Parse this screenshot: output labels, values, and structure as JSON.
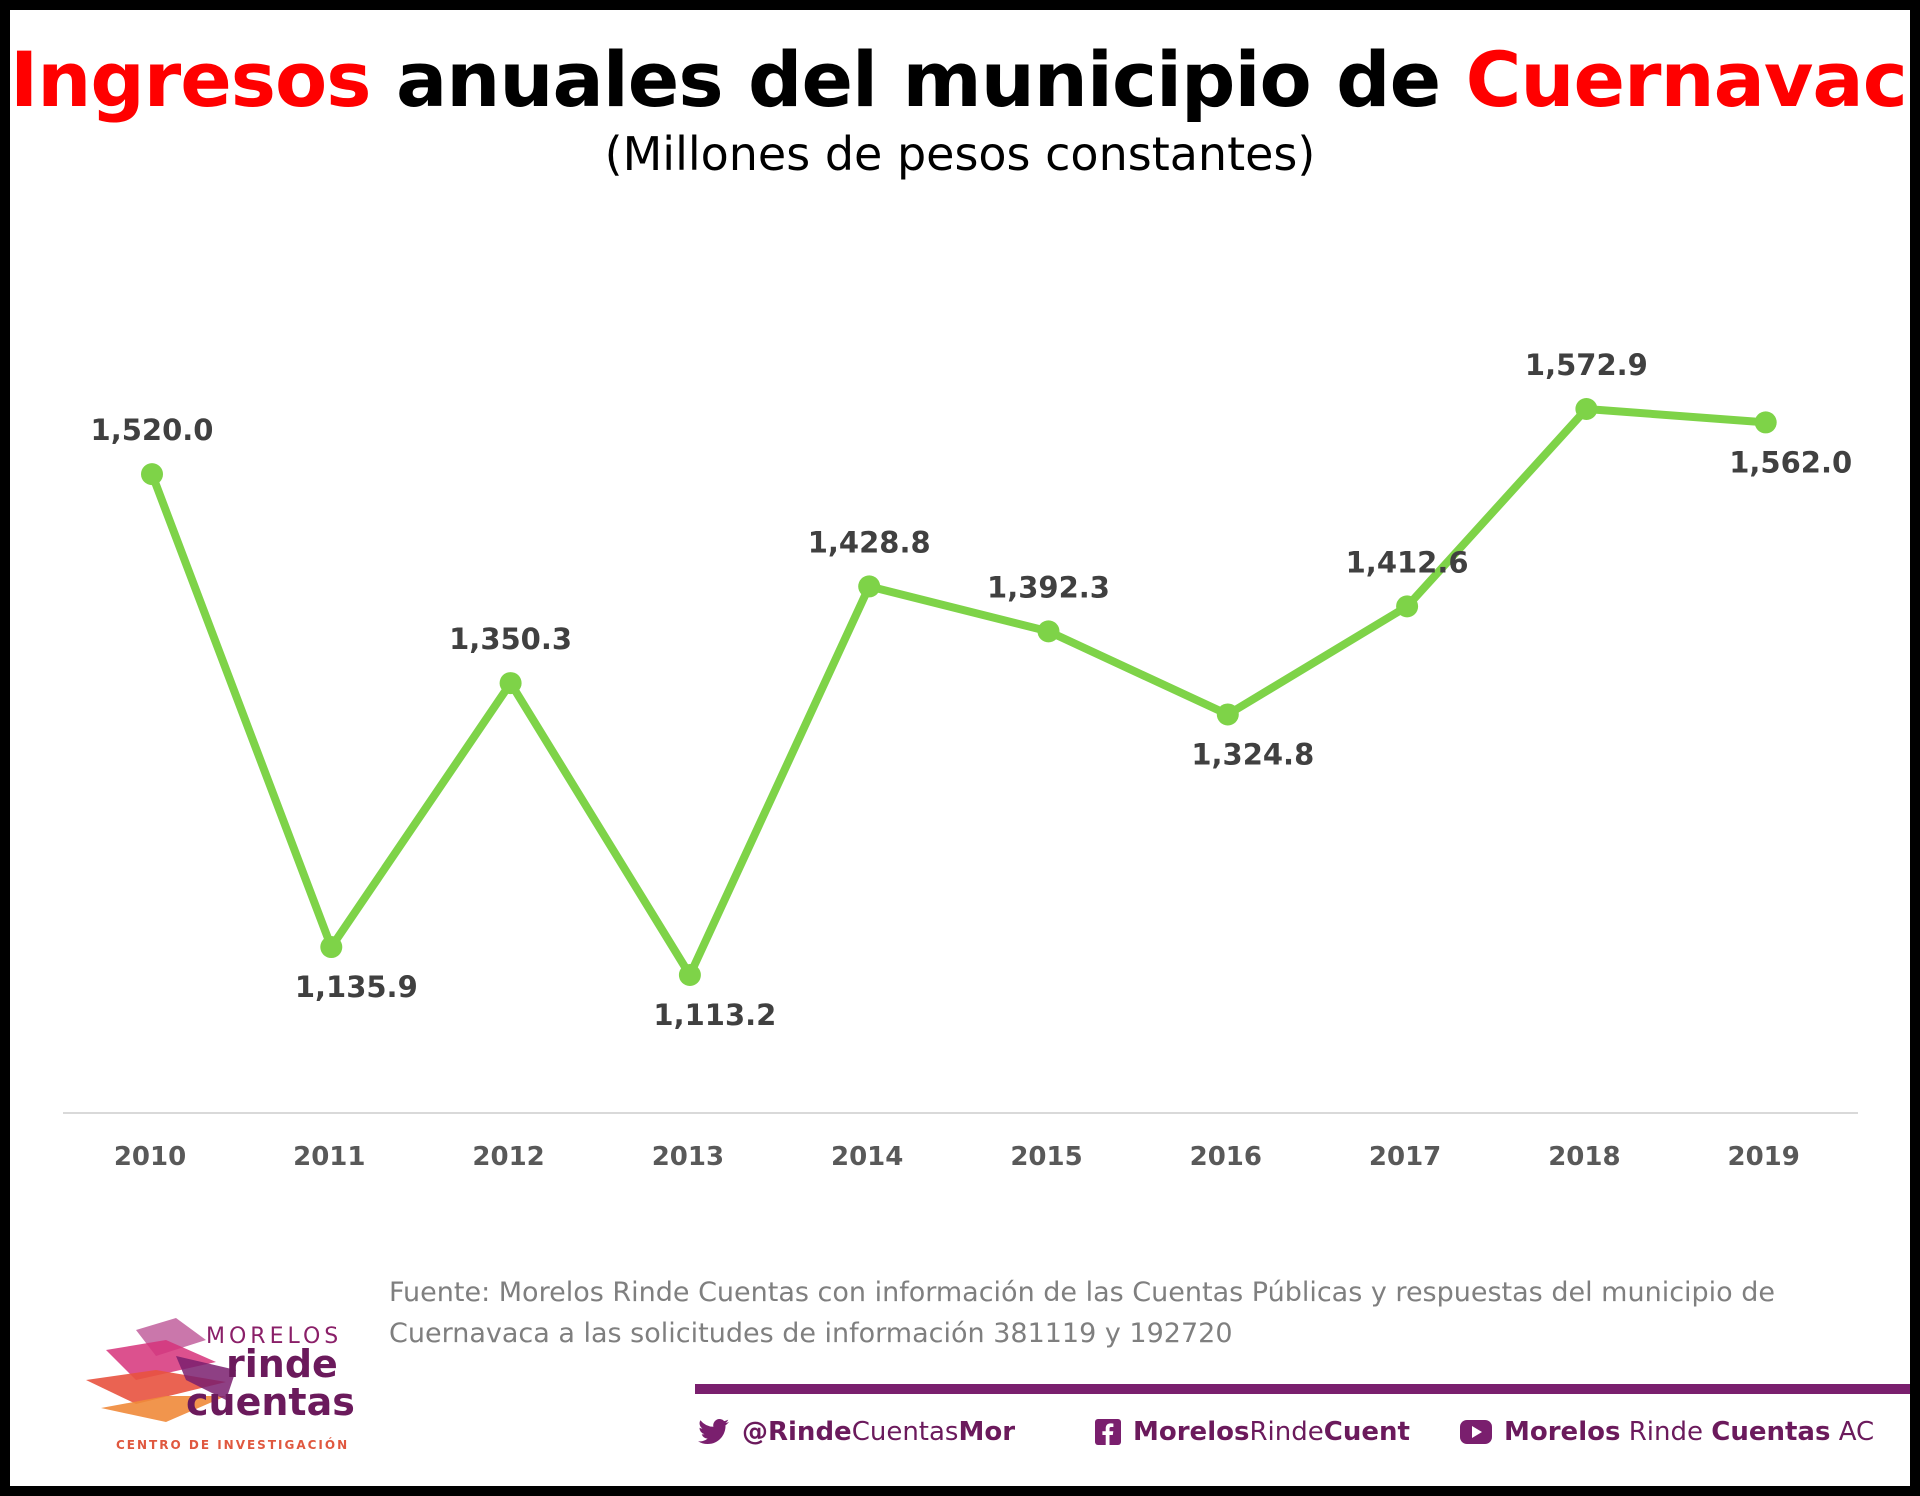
{
  "title": {
    "part1": "Ingresos",
    "part2": "anuales del municipio de",
    "part3": "Cuernavaca"
  },
  "subtitle": "(Millones de pesos constantes)",
  "colors": {
    "title_accent": "#ff0000",
    "line": "#7ed348",
    "label": "#404040",
    "axis": "#d9d9d9",
    "brand": "#6b1a5c",
    "source_text": "#7f7f7f"
  },
  "chart_data": {
    "type": "line",
    "categories": [
      "2010",
      "2011",
      "2012",
      "2013",
      "2014",
      "2015",
      "2016",
      "2017",
      "2018",
      "2019"
    ],
    "series": [
      {
        "values": [
          1520.0,
          1135.9,
          1350.3,
          1113.2,
          1428.8,
          1392.3,
          1324.8,
          1412.6,
          1572.9,
          1562.0
        ],
        "labels": [
          "1,520.0",
          "1,135.9",
          "1,350.3",
          "1,113.2",
          "1,428.8",
          "1,392.3",
          "1,324.8",
          "1,412.6",
          "1,572.9",
          "1,562.0"
        ]
      }
    ],
    "title": "Ingresos anuales del municipio de Cuernavaca",
    "subtitle": "(Millones de pesos constantes)",
    "xlabel": "",
    "ylabel": "",
    "grid": false,
    "marker": "circle"
  },
  "source": "Fuente: Morelos Rinde Cuentas con información de las  Cuentas Públicas y respuestas del municipio de Cuernavaca a las solicitudes de información 381119 y 192720",
  "logo": {
    "line1": "MORELOS",
    "line2": "rinde",
    "line3": "cuentas",
    "line4": "CENTRO DE INVESTIGACIÓN"
  },
  "social": {
    "twitter": {
      "bold_a": "@Rinde",
      "regular": "Cuentas",
      "bold_b": "Mor",
      "icon": "twitter-icon"
    },
    "facebook": {
      "bold_a": "Morelos",
      "regular": "Rinde",
      "bold_b": "Cuent",
      "icon": "facebook-icon"
    },
    "youtube": {
      "bold_a": "Morelos",
      "regular": " Rinde ",
      "bold_b": "Cuentas",
      "regular_b": " AC",
      "icon": "youtube-icon"
    }
  }
}
